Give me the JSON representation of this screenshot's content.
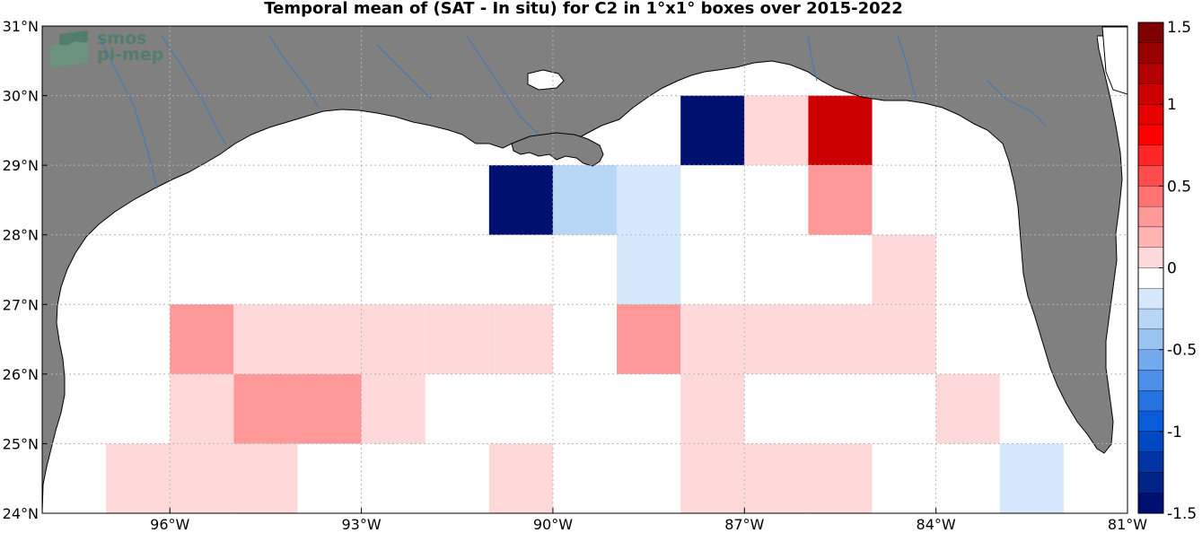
{
  "title": "Temporal mean of (SAT - In situ) for C2 in 1°x1° boxes over 2015-2022",
  "logo": {
    "line1": "smos",
    "line2": "pi-mep"
  },
  "colors": {
    "land": "#808080",
    "ocean": "#ffffff",
    "rivers": "#3a78c2",
    "grid": "#b4b4b4"
  },
  "map_extent": {
    "lon": [
      -98,
      -81
    ],
    "lat": [
      24,
      31
    ]
  },
  "axes": {
    "lon_ticks": [
      {
        "value": -96,
        "label": "96°W"
      },
      {
        "value": -93,
        "label": "93°W"
      },
      {
        "value": -90,
        "label": "90°W"
      },
      {
        "value": -87,
        "label": "87°W"
      },
      {
        "value": -84,
        "label": "84°W"
      },
      {
        "value": -81,
        "label": "81°W"
      }
    ],
    "lat_ticks": [
      {
        "value": 24,
        "label": "24°N"
      },
      {
        "value": 25,
        "label": "25°N"
      },
      {
        "value": 26,
        "label": "26°N"
      },
      {
        "value": 27,
        "label": "27°N"
      },
      {
        "value": 28,
        "label": "28°N"
      },
      {
        "value": 29,
        "label": "29°N"
      },
      {
        "value": 30,
        "label": "30°N"
      },
      {
        "value": 31,
        "label": "31°N"
      }
    ]
  },
  "colorbar": {
    "range": [
      -1.5,
      1.5
    ],
    "ticks": [
      {
        "value": 1.5,
        "label": "1.5"
      },
      {
        "value": 1,
        "label": "1"
      },
      {
        "value": 0.5,
        "label": "0.5"
      },
      {
        "value": 0,
        "label": "0"
      },
      {
        "value": -0.5,
        "label": "-0.5"
      },
      {
        "value": -1,
        "label": "-1"
      },
      {
        "value": -1.5,
        "label": "-1.5"
      }
    ],
    "bins": [
      {
        "from": 1.375,
        "to": 1.5,
        "color": "#7f0000"
      },
      {
        "from": 1.25,
        "to": 1.375,
        "color": "#990000"
      },
      {
        "from": 1.125,
        "to": 1.25,
        "color": "#b30000"
      },
      {
        "from": 1.0,
        "to": 1.125,
        "color": "#cc0000"
      },
      {
        "from": 0.875,
        "to": 1.0,
        "color": "#e60000"
      },
      {
        "from": 0.75,
        "to": 0.875,
        "color": "#ff0000"
      },
      {
        "from": 0.625,
        "to": 0.75,
        "color": "#ff2626"
      },
      {
        "from": 0.5,
        "to": 0.625,
        "color": "#ff4d4d"
      },
      {
        "from": 0.375,
        "to": 0.5,
        "color": "#ff7373"
      },
      {
        "from": 0.25,
        "to": 0.375,
        "color": "#ff9999"
      },
      {
        "from": 0.125,
        "to": 0.25,
        "color": "#ffb3b3"
      },
      {
        "from": 0.0,
        "to": 0.125,
        "color": "#ffd9d9"
      },
      {
        "from": -0.125,
        "to": 0.0,
        "color": "#ffffff"
      },
      {
        "from": -0.25,
        "to": -0.125,
        "color": "#d6e8fb"
      },
      {
        "from": -0.375,
        "to": -0.25,
        "color": "#b8d7f7"
      },
      {
        "from": -0.5,
        "to": -0.375,
        "color": "#99c4f2"
      },
      {
        "from": -0.625,
        "to": -0.5,
        "color": "#73a9ed"
      },
      {
        "from": -0.75,
        "to": -0.625,
        "color": "#4d8fe8"
      },
      {
        "from": -0.875,
        "to": -0.75,
        "color": "#2673e0"
      },
      {
        "from": -1.0,
        "to": -0.875,
        "color": "#0a5bd9"
      },
      {
        "from": -1.125,
        "to": -1.0,
        "color": "#0047c2"
      },
      {
        "from": -1.25,
        "to": -1.125,
        "color": "#0033a3"
      },
      {
        "from": -1.375,
        "to": -1.25,
        "color": "#002488"
      },
      {
        "from": -1.5,
        "to": -1.375,
        "color": "#001070"
      }
    ]
  },
  "boxes": [
    {
      "lon": -87.5,
      "lat": 29.5,
      "value": -1.4
    },
    {
      "lon": -90.5,
      "lat": 28.5,
      "value": -1.4
    },
    {
      "lon": -89.5,
      "lat": 28.5,
      "value": -0.3
    },
    {
      "lon": -88.5,
      "lat": 28.5,
      "value": -0.2
    },
    {
      "lon": -88.5,
      "lat": 27.5,
      "value": -0.2
    },
    {
      "lon": -86.5,
      "lat": 29.5,
      "value": 0.1
    },
    {
      "lon": -85.5,
      "lat": 29.5,
      "value": 1.1
    },
    {
      "lon": -85.5,
      "lat": 28.5,
      "value": 0.3
    },
    {
      "lon": -84.5,
      "lat": 27.5,
      "value": 0.1
    },
    {
      "lon": -95.5,
      "lat": 26.5,
      "value": 0.3
    },
    {
      "lon": -94.5,
      "lat": 26.5,
      "value": 0.1
    },
    {
      "lon": -93.5,
      "lat": 26.5,
      "value": 0.1
    },
    {
      "lon": -92.5,
      "lat": 26.5,
      "value": 0.1
    },
    {
      "lon": -91.5,
      "lat": 26.5,
      "value": 0.1
    },
    {
      "lon": -90.5,
      "lat": 26.5,
      "value": 0.1
    },
    {
      "lon": -88.5,
      "lat": 26.5,
      "value": 0.3
    },
    {
      "lon": -87.5,
      "lat": 26.5,
      "value": 0.1
    },
    {
      "lon": -86.5,
      "lat": 26.5,
      "value": 0.1
    },
    {
      "lon": -85.5,
      "lat": 26.5,
      "value": 0.1
    },
    {
      "lon": -84.5,
      "lat": 26.5,
      "value": 0.1
    },
    {
      "lon": -95.5,
      "lat": 25.5,
      "value": 0.1
    },
    {
      "lon": -94.5,
      "lat": 25.5,
      "value": 0.3
    },
    {
      "lon": -93.5,
      "lat": 25.5,
      "value": 0.3
    },
    {
      "lon": -92.5,
      "lat": 25.5,
      "value": 0.1
    },
    {
      "lon": -87.5,
      "lat": 25.5,
      "value": 0.1
    },
    {
      "lon": -83.5,
      "lat": 25.5,
      "value": 0.1
    },
    {
      "lon": -96.5,
      "lat": 24.5,
      "value": 0.1
    },
    {
      "lon": -95.5,
      "lat": 24.5,
      "value": 0.1
    },
    {
      "lon": -94.5,
      "lat": 24.5,
      "value": 0.1
    },
    {
      "lon": -90.5,
      "lat": 24.5,
      "value": 0.1
    },
    {
      "lon": -87.5,
      "lat": 24.5,
      "value": 0.1
    },
    {
      "lon": -86.5,
      "lat": 24.5,
      "value": 0.1
    },
    {
      "lon": -85.5,
      "lat": 24.5,
      "value": 0.1
    },
    {
      "lon": -82.5,
      "lat": 24.5,
      "value": -0.2
    }
  ]
}
